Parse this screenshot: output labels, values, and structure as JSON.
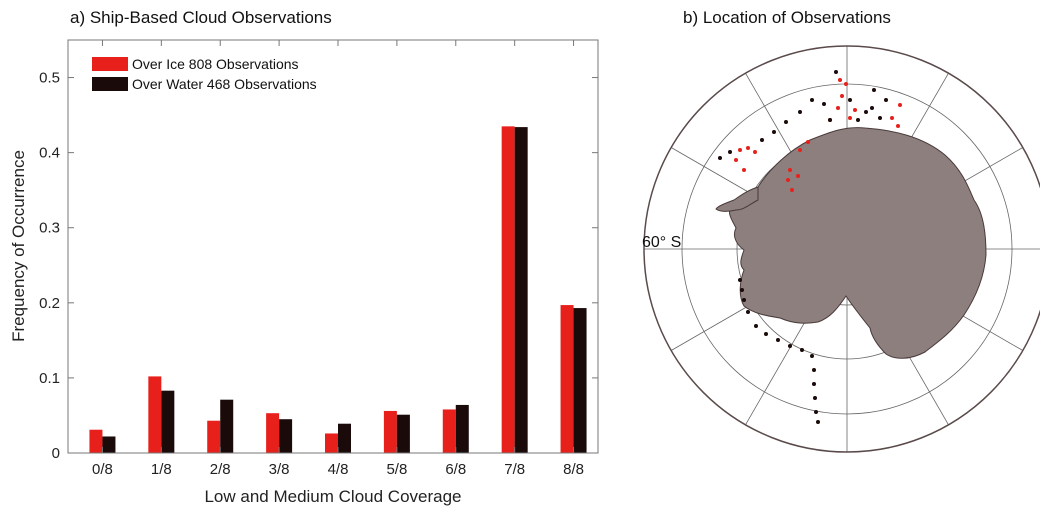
{
  "panel_a": {
    "title": "a) Ship-Based Cloud Observations"
  },
  "panel_b": {
    "title": "b) Location of Observations",
    "lat_label": "60° S",
    "land_color": "#8c7f7d",
    "coast_color": "#4a3a3a"
  },
  "chart_data": {
    "type": "bar",
    "title": "a) Ship-Based Cloud Observations",
    "xlabel": "Low and Medium Cloud Coverage",
    "ylabel": "Frequency of Occurrence",
    "categories": [
      "0/8",
      "1/8",
      "2/8",
      "3/8",
      "4/8",
      "5/8",
      "6/8",
      "7/8",
      "8/8"
    ],
    "ylim": [
      0,
      0.55
    ],
    "yticks": [
      0,
      0.1,
      0.2,
      0.3,
      0.4,
      0.5
    ],
    "ytick_labels": [
      "0",
      "0.1",
      "0.2",
      "0.3",
      "0.4",
      "0.5"
    ],
    "legend_position": "top-left",
    "grid": false,
    "series": [
      {
        "name": "Over Ice 808 Observations",
        "color": "#e8201c",
        "values": [
          0.031,
          0.102,
          0.043,
          0.053,
          0.026,
          0.056,
          0.058,
          0.435,
          0.197
        ]
      },
      {
        "name": "Over Water 468 Observations",
        "color": "#1a0a0a",
        "values": [
          0.022,
          0.083,
          0.071,
          0.045,
          0.039,
          0.051,
          0.064,
          0.434,
          0.193
        ]
      }
    ]
  }
}
